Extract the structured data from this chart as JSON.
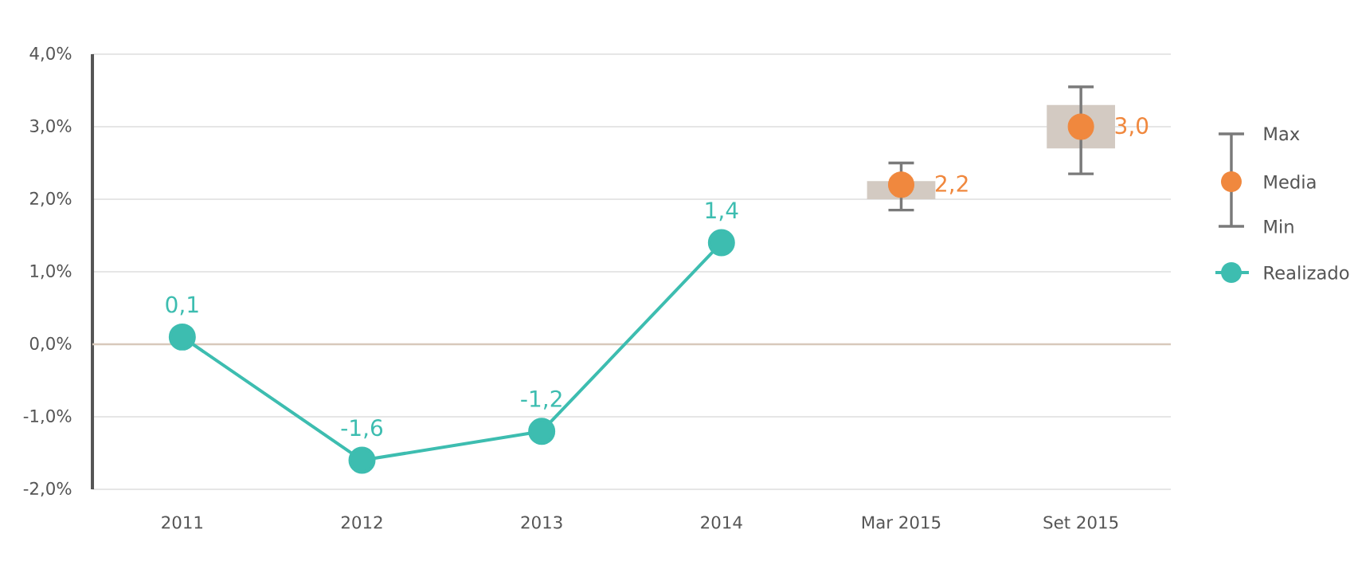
{
  "chart_data": {
    "type": "line",
    "categories": [
      "2011",
      "2012",
      "2013",
      "2014",
      "Mar 2015",
      "Set 2015"
    ],
    "ylim": [
      -2,
      4
    ],
    "yticks": [
      {
        "value": -2,
        "label": "-2,0%"
      },
      {
        "value": -1,
        "label": "-1,0%"
      },
      {
        "value": 0,
        "label": "0,0%"
      },
      {
        "value": 1,
        "label": "1,0%"
      },
      {
        "value": 2,
        "label": "2,0%"
      },
      {
        "value": 3,
        "label": "3,0%"
      },
      {
        "value": 4,
        "label": "4,0%"
      }
    ],
    "grid": "y",
    "legend": "right",
    "ref_lines": [
      {
        "axis": "y",
        "value": 0,
        "color": "#d8c9bb"
      }
    ],
    "annotations": [
      "Max",
      "Min"
    ],
    "series": [
      {
        "name": "Realizado",
        "color": "#3dbdb0",
        "marker": "circle",
        "values": [
          0.1,
          -1.6,
          -1.2,
          1.4,
          null,
          null
        ],
        "value_labels": [
          "0,1",
          "-1,6",
          "-1,2",
          "1,4",
          null,
          null
        ]
      },
      {
        "type": "bar",
        "color": "#d3cac2",
        "base": [
          null,
          null,
          null,
          null,
          2.0,
          2.7
        ],
        "values": [
          null,
          null,
          null,
          null,
          0.25,
          0.6
        ]
      },
      {
        "name": "Media",
        "type": "scatter",
        "color": "#f0883e",
        "marker": "circle",
        "values": [
          null,
          null,
          null,
          null,
          2.2,
          3.0
        ],
        "errors": [
          null,
          null,
          null,
          null,
          [
            1.85,
            2.5
          ],
          [
            2.35,
            3.55
          ]
        ],
        "value_labels": [
          null,
          null,
          null,
          null,
          "2,2",
          "3,0"
        ]
      }
    ]
  }
}
